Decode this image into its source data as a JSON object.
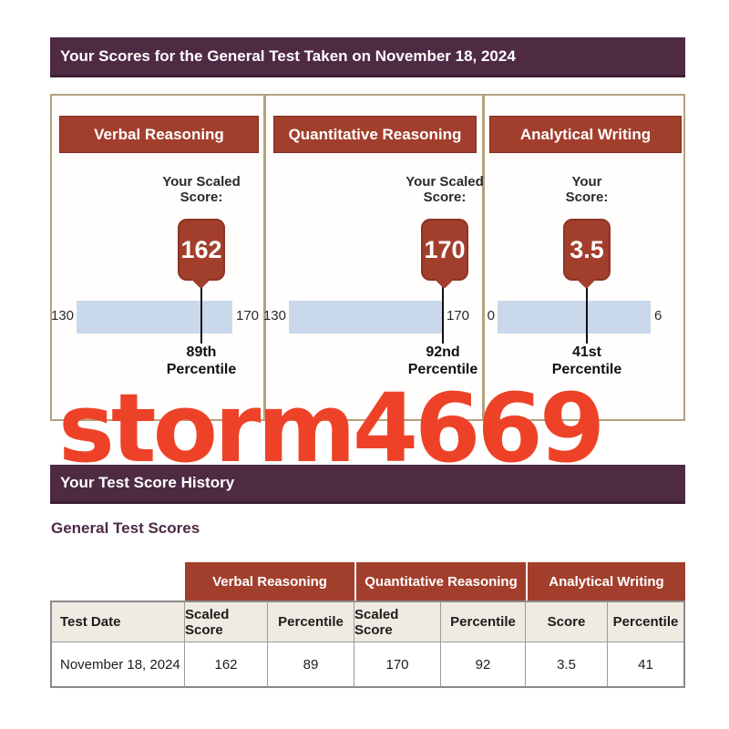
{
  "page": {
    "scores_banner": "Your Scores for the General Test Taken on November 18, 2024",
    "history_banner": "Your Test Score History",
    "history_subheading": "General Test Scores",
    "watermark": "storm4669"
  },
  "colors": {
    "banner_purple": "#4e2a43",
    "brick_red": "#a23e2c",
    "scale_bar_blue": "#c9d8ea",
    "watermark_red": "#ee4228",
    "subheader_beige": "#f0ebe2",
    "container_border_tan": "#b3a27e"
  },
  "cards": [
    {
      "title": "Verbal Reasoning",
      "label_line1": "Your Scaled",
      "label_line2": "Score:",
      "score": "162",
      "scale_min": "130",
      "scale_max": "170",
      "percentile_line1": "89th",
      "percentile_line2": "Percentile"
    },
    {
      "title": "Quantitative Reasoning",
      "label_line1": "Your Scaled",
      "label_line2": "Score:",
      "score": "170",
      "scale_min": "130",
      "scale_max": "170",
      "percentile_line1": "92nd",
      "percentile_line2": "Percentile"
    },
    {
      "title": "Analytical Writing",
      "label_line1": "Your",
      "label_line2": "Score:",
      "score": "3.5",
      "scale_min": "0",
      "scale_max": "6",
      "percentile_line1": "41st",
      "percentile_line2": "Percentile"
    }
  ],
  "history_table": {
    "group_headers": [
      "Verbal Reasoning",
      "Quantitative Reasoning",
      "Analytical Writing"
    ],
    "column_headers": [
      "Test Date",
      "Scaled Score",
      "Percentile",
      "Scaled Score",
      "Percentile",
      "Score",
      "Percentile"
    ],
    "rows": [
      [
        "November 18, 2024",
        "162",
        "89",
        "170",
        "92",
        "3.5",
        "41"
      ]
    ]
  }
}
